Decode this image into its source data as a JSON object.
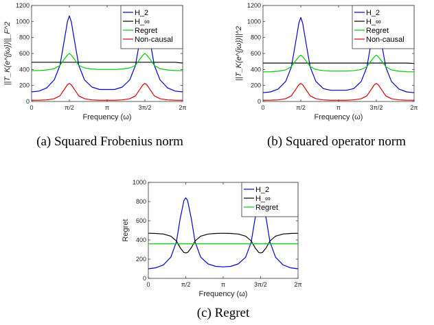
{
  "chart_data": [
    {
      "type": "line",
      "caption": "(a) Squared Frobenius norm",
      "xlabel": "Frequency (ω)",
      "ylabel": "||T_K(e^{jω})||_F^2",
      "xlim": [
        0,
        6.2832
      ],
      "ylim": [
        0,
        1200
      ],
      "xticks": [
        0,
        1.5708,
        3.1416,
        4.7124,
        6.2832
      ],
      "xtick_labels": [
        "0",
        "π/2",
        "π",
        "3π/2",
        "2π"
      ],
      "yticks": [
        0,
        200,
        400,
        600,
        800,
        1000,
        1200
      ],
      "grid": false,
      "legend_position": "top-right",
      "x": [
        0,
        0.3142,
        0.6283,
        0.9425,
        1.1781,
        1.3352,
        1.4923,
        1.5708,
        1.6493,
        1.8064,
        1.9635,
        2.1991,
        2.5133,
        2.8274,
        3.1416,
        3.4558,
        3.7699,
        4.0841,
        4.3197,
        4.4768,
        4.6339,
        4.7124,
        4.7909,
        4.948,
        5.1051,
        5.3407,
        5.6549,
        5.969,
        6.2832
      ],
      "series": [
        {
          "name": "H_2",
          "color": "#0000cc",
          "values": [
            120,
            130,
            170,
            270,
            450,
            720,
            1000,
            1070,
            1000,
            720,
            450,
            270,
            180,
            150,
            150,
            150,
            180,
            270,
            450,
            720,
            1000,
            1070,
            1000,
            720,
            450,
            270,
            170,
            130,
            120
          ]
        },
        {
          "name": "H_∞",
          "color": "#000000",
          "values": [
            490,
            490,
            490,
            490,
            490,
            490,
            490,
            490,
            490,
            490,
            490,
            490,
            490,
            490,
            490,
            490,
            490,
            490,
            490,
            490,
            490,
            490,
            490,
            490,
            490,
            490,
            490,
            490,
            480
          ]
        },
        {
          "name": "Regret",
          "color": "#00cc00",
          "values": [
            385,
            387,
            393,
            410,
            450,
            520,
            580,
            600,
            580,
            520,
            450,
            420,
            405,
            400,
            400,
            400,
            405,
            420,
            450,
            520,
            580,
            600,
            580,
            520,
            450,
            410,
            393,
            387,
            385
          ]
        },
        {
          "name": "Non-causal",
          "color": "#dd0000",
          "values": [
            15,
            16,
            20,
            35,
            70,
            140,
            210,
            225,
            210,
            140,
            70,
            35,
            20,
            15,
            15,
            15,
            20,
            35,
            70,
            140,
            210,
            225,
            210,
            140,
            70,
            35,
            20,
            16,
            15
          ]
        }
      ]
    },
    {
      "type": "line",
      "caption": "(b) Squared operator norm",
      "xlabel": "Frequency (ω)",
      "ylabel": "||T_K(e^{jω})||^2",
      "xlim": [
        0,
        6.2832
      ],
      "ylim": [
        0,
        1200
      ],
      "xticks": [
        0,
        1.5708,
        3.1416,
        4.7124,
        6.2832
      ],
      "xtick_labels": [
        "0",
        "π/2",
        "π",
        "3π/2",
        "2π"
      ],
      "yticks": [
        0,
        200,
        400,
        600,
        800,
        1000,
        1200
      ],
      "grid": false,
      "legend_position": "top-right",
      "x": [
        0,
        0.3142,
        0.6283,
        0.9425,
        1.1781,
        1.3352,
        1.4923,
        1.5708,
        1.6493,
        1.8064,
        1.9635,
        2.1991,
        2.5133,
        2.8274,
        3.1416,
        3.4558,
        3.7699,
        4.0841,
        4.3197,
        4.4768,
        4.6339,
        4.7124,
        4.7909,
        4.948,
        5.1051,
        5.3407,
        5.6549,
        5.969,
        6.2832
      ],
      "series": [
        {
          "name": "H_2",
          "color": "#0000cc",
          "values": [
            110,
            120,
            155,
            250,
            430,
            700,
            980,
            1050,
            980,
            700,
            430,
            250,
            160,
            140,
            140,
            140,
            160,
            250,
            430,
            700,
            980,
            1050,
            980,
            700,
            430,
            250,
            155,
            120,
            110
          ]
        },
        {
          "name": "H_∞",
          "color": "#000000",
          "values": [
            480,
            480,
            480,
            480,
            480,
            480,
            480,
            480,
            480,
            480,
            480,
            480,
            480,
            480,
            480,
            480,
            480,
            480,
            480,
            480,
            480,
            480,
            480,
            480,
            480,
            480,
            480,
            480,
            475
          ]
        },
        {
          "name": "Regret",
          "color": "#00cc00",
          "values": [
            370,
            372,
            378,
            395,
            435,
            500,
            560,
            580,
            560,
            500,
            435,
            400,
            385,
            380,
            380,
            380,
            385,
            400,
            435,
            500,
            560,
            580,
            560,
            500,
            435,
            395,
            378,
            372,
            370
          ]
        },
        {
          "name": "Non-causal",
          "color": "#dd0000",
          "values": [
            15,
            16,
            20,
            35,
            70,
            140,
            210,
            225,
            210,
            140,
            70,
            35,
            20,
            15,
            15,
            15,
            20,
            35,
            70,
            140,
            210,
            225,
            210,
            140,
            70,
            35,
            20,
            16,
            15
          ]
        }
      ]
    },
    {
      "type": "line",
      "caption": "(c) Regret",
      "xlabel": "Frequency (ω)",
      "ylabel": "Regret",
      "xlim": [
        0,
        6.2832
      ],
      "ylim": [
        0,
        1000
      ],
      "xticks": [
        0,
        1.5708,
        3.1416,
        4.7124,
        6.2832
      ],
      "xtick_labels": [
        "0",
        "π/2",
        "π",
        "3π/2",
        "2π"
      ],
      "yticks": [
        0,
        200,
        400,
        600,
        800,
        1000
      ],
      "grid": false,
      "legend_position": "top-right",
      "x": [
        0,
        0.3142,
        0.6283,
        0.9425,
        1.1781,
        1.3352,
        1.4923,
        1.5708,
        1.6493,
        1.8064,
        1.9635,
        2.1991,
        2.5133,
        2.8274,
        3.1416,
        3.4558,
        3.7699,
        4.0841,
        4.3197,
        4.4768,
        4.6339,
        4.7124,
        4.7909,
        4.948,
        5.1051,
        5.3407,
        5.6549,
        5.969,
        6.2832
      ],
      "series": [
        {
          "name": "H_2",
          "color": "#0000cc",
          "values": [
            100,
            110,
            140,
            220,
            380,
            620,
            810,
            840,
            810,
            620,
            380,
            220,
            150,
            125,
            120,
            125,
            150,
            220,
            380,
            620,
            810,
            840,
            810,
            620,
            380,
            220,
            140,
            110,
            100
          ]
        },
        {
          "name": "H_∞",
          "color": "#000000",
          "values": [
            470,
            468,
            462,
            440,
            390,
            320,
            270,
            265,
            270,
            320,
            390,
            440,
            462,
            468,
            470,
            468,
            462,
            440,
            390,
            320,
            270,
            265,
            270,
            320,
            390,
            440,
            462,
            468,
            470
          ]
        },
        {
          "name": "Regret",
          "color": "#00cc00",
          "values": [
            360,
            360,
            360,
            360,
            360,
            360,
            360,
            360,
            360,
            360,
            360,
            360,
            360,
            360,
            360,
            360,
            360,
            360,
            360,
            360,
            360,
            360,
            360,
            360,
            360,
            360,
            360,
            360,
            360
          ]
        }
      ]
    }
  ]
}
